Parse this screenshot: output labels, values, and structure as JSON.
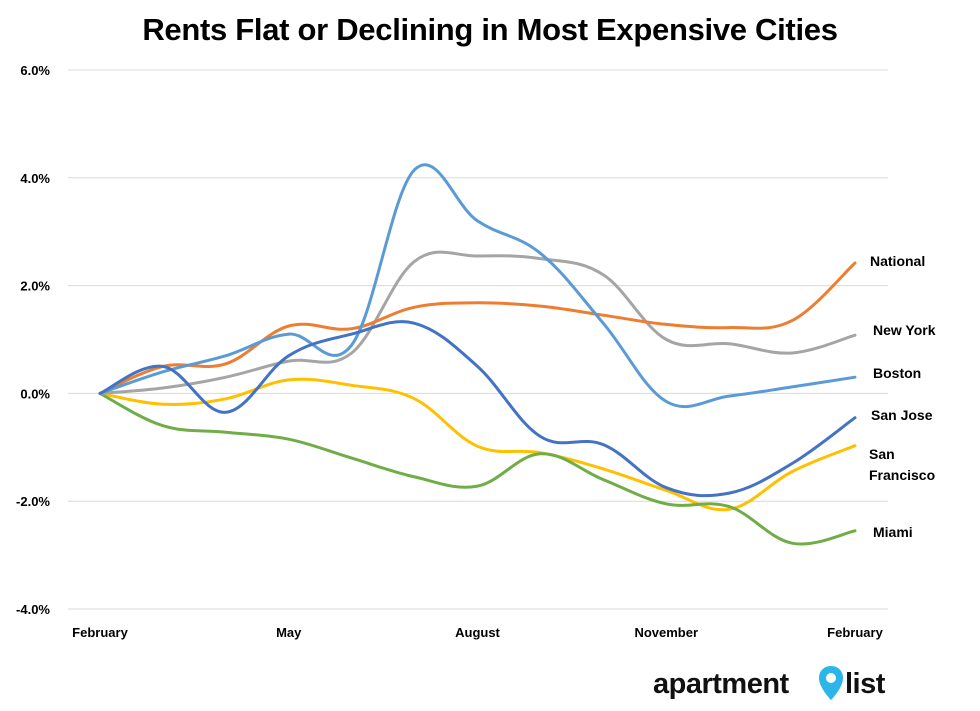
{
  "chart_data": {
    "type": "line",
    "title": "Rents Flat or Declining in Most Expensive Cities",
    "xlabel": "",
    "ylabel": "",
    "x_tick_labels": [
      "February",
      "May",
      "August",
      "November",
      "February"
    ],
    "y_tick_labels": [
      "6.0%",
      "4.0%",
      "2.0%",
      "0.0%",
      "-2.0%",
      "-4.0%"
    ],
    "ylim": [
      -4.0,
      6.0
    ],
    "months": 13,
    "grid": true,
    "legend": "inline labels at right end of each series",
    "series": [
      {
        "name": "National",
        "color": "#ED7D31",
        "values": [
          0,
          0.5,
          0.55,
          1.25,
          1.2,
          1.6,
          1.68,
          1.62,
          1.45,
          1.28,
          1.22,
          1.35,
          2.42
        ]
      },
      {
        "name": "New York",
        "color": "#A5A5A5",
        "values": [
          0,
          0.1,
          0.3,
          0.6,
          0.75,
          2.45,
          2.55,
          2.5,
          2.2,
          1.0,
          0.92,
          0.75,
          1.08
        ]
      },
      {
        "name": "Boston",
        "color": "#5B9BD5",
        "values": [
          0,
          0.4,
          0.7,
          1.1,
          0.9,
          4.15,
          3.2,
          2.6,
          1.3,
          -0.15,
          -0.05,
          0.12,
          0.3
        ]
      },
      {
        "name": "San Jose",
        "color": "#4472C4",
        "values": [
          0,
          0.5,
          -0.35,
          0.7,
          1.1,
          1.3,
          0.5,
          -0.8,
          -0.95,
          -1.75,
          -1.85,
          -1.3,
          -0.45
        ]
      },
      {
        "name": "San Francisco",
        "color": "#FFC000",
        "values": [
          0,
          -0.2,
          -0.1,
          0.25,
          0.15,
          -0.1,
          -0.98,
          -1.1,
          -1.4,
          -1.8,
          -2.15,
          -1.45,
          -0.97
        ]
      },
      {
        "name": "Miami",
        "color": "#70AD47",
        "values": [
          0,
          -0.6,
          -0.72,
          -0.85,
          -1.2,
          -1.55,
          -1.72,
          -1.12,
          -1.6,
          -2.05,
          -2.1,
          -2.78,
          -2.55
        ]
      }
    ],
    "series_labels": [
      {
        "series": "National",
        "lines": [
          "National"
        ]
      },
      {
        "series": "New York",
        "lines": [
          "New York"
        ]
      },
      {
        "series": "Boston",
        "lines": [
          "Boston"
        ]
      },
      {
        "series": "San Jose",
        "lines": [
          "San Jose"
        ]
      },
      {
        "series": "San Francisco",
        "lines": [
          "San",
          "Francisco"
        ]
      },
      {
        "series": "Miami",
        "lines": [
          "Miami"
        ]
      }
    ]
  },
  "logo": {
    "text_before_pin": "apartment",
    "text_after_pin": "list",
    "pin_color": "#2BB5E8"
  }
}
